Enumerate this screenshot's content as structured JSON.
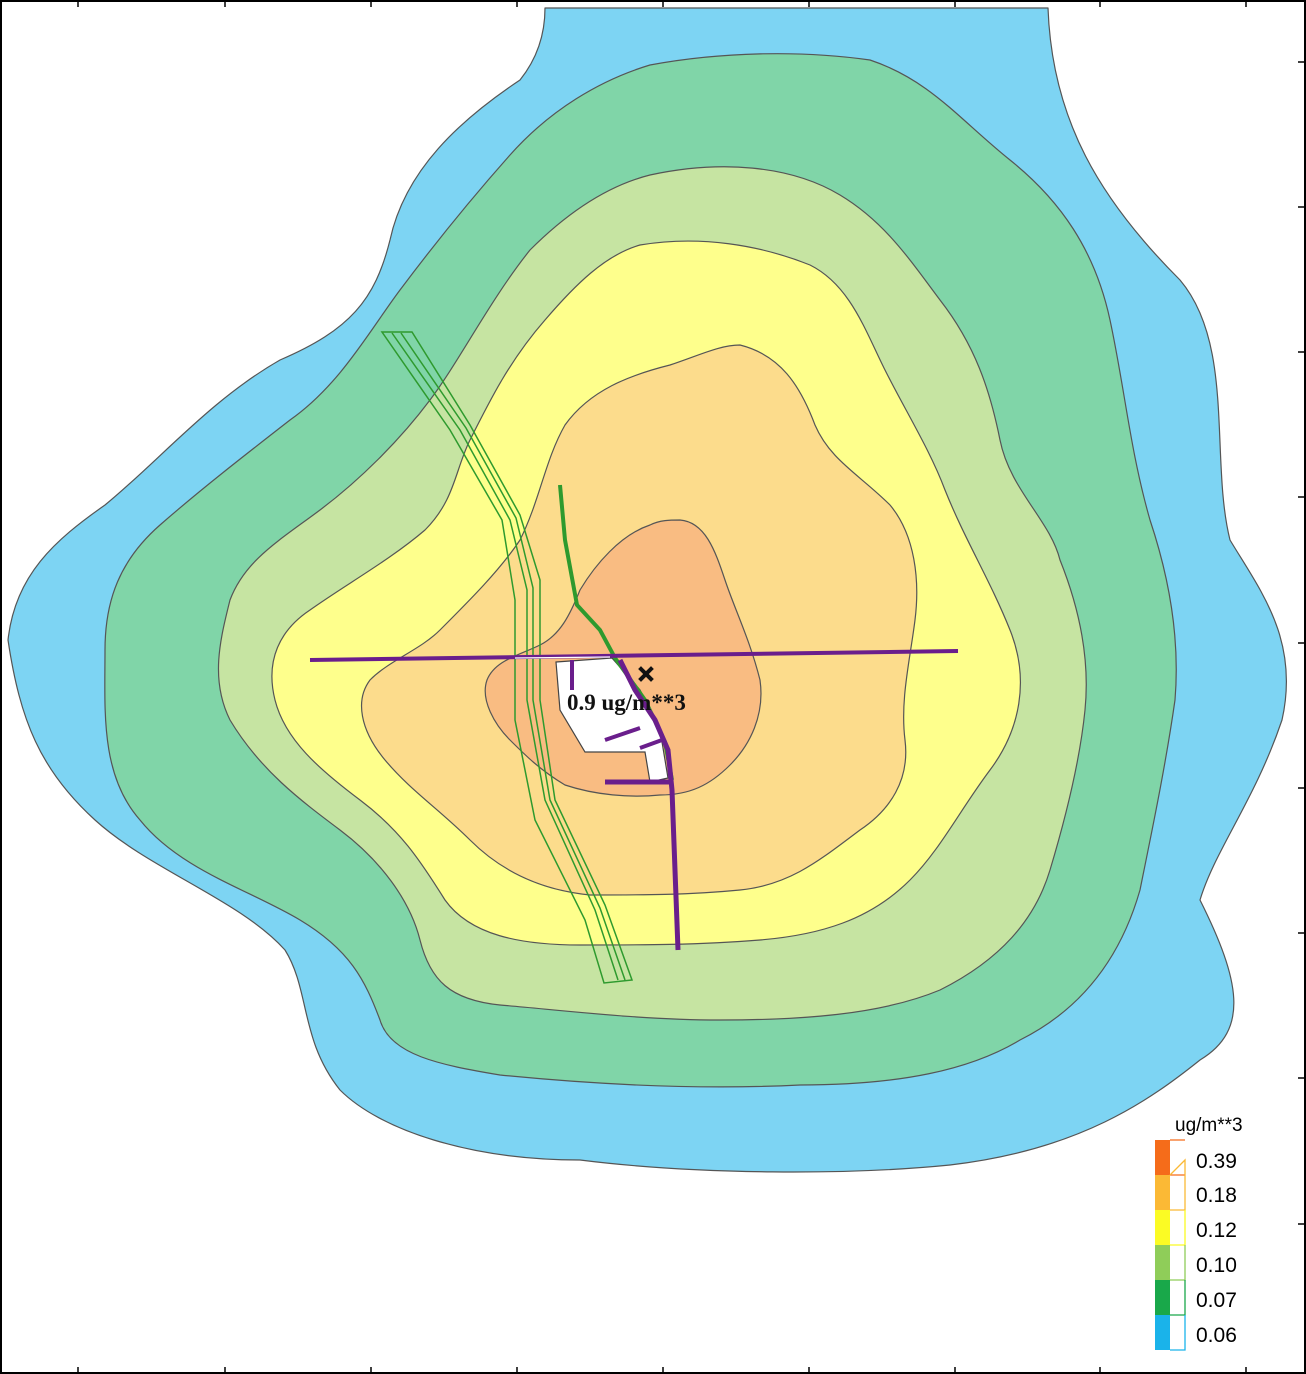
{
  "colors": {
    "background": "#ffffff",
    "contour_stroke": "#555555",
    "road_green": "#2e9a2e",
    "road_purple": "#6a1e8c",
    "peak_fill": "#ffffff"
  },
  "map": {
    "max_concentration_label": "0.9 ug/m**3",
    "max_marker_icon": "x-marker-icon"
  },
  "contours": [
    {
      "level": "0.06",
      "color": "#7dd4f3"
    },
    {
      "level": "0.07",
      "color": "#80d5a8"
    },
    {
      "level": "0.10",
      "color": "#c6e4a2"
    },
    {
      "level": "0.12",
      "color": "#feff8c"
    },
    {
      "level": "0.18",
      "color": "#fcdc8c"
    },
    {
      "level": "0.39",
      "color": "#f9bc82"
    }
  ],
  "legend": {
    "title": "ug/m**3",
    "entries": [
      {
        "label": "0.39",
        "color": "#f56c1a"
      },
      {
        "label": "0.18",
        "color": "#fbb935"
      },
      {
        "label": "0.12",
        "color": "#fbfb24"
      },
      {
        "label": "0.10",
        "color": "#8fcd59"
      },
      {
        "label": "0.07",
        "color": "#19a84a"
      },
      {
        "label": "0.06",
        "color": "#1ab3ea"
      }
    ]
  }
}
